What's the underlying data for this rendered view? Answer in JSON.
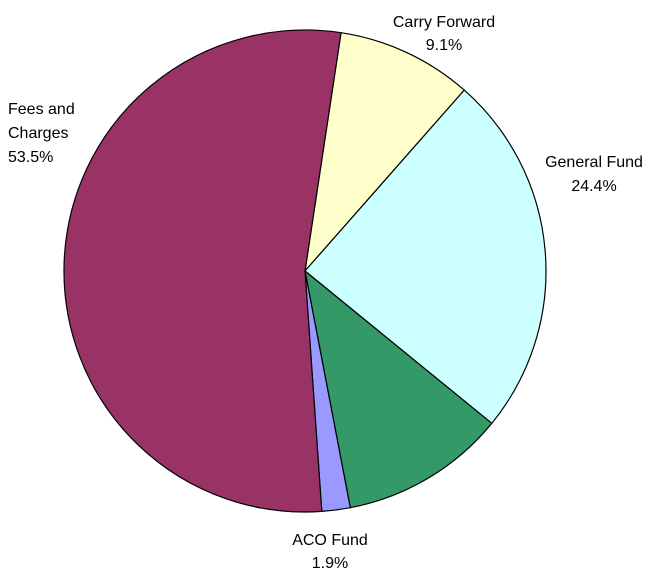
{
  "chart_data": {
    "type": "pie",
    "title": "",
    "slices": [
      {
        "label": "Carry Forward",
        "value": 9.1,
        "label_text": "9.1%",
        "color": "#ffffcc"
      },
      {
        "label": "General Fund",
        "value": 24.4,
        "label_text": "24.4%",
        "color": "#ccffff"
      },
      {
        "label": "",
        "value": 11.1,
        "label_text": "",
        "color": "#339966"
      },
      {
        "label": "ACO Fund",
        "value": 1.9,
        "label_text": "1.9%",
        "color": "#9999ff"
      },
      {
        "label": "Fees and Charges",
        "value": 53.5,
        "label_text": "53.5%",
        "color": "#993366"
      }
    ],
    "legend": "none"
  }
}
